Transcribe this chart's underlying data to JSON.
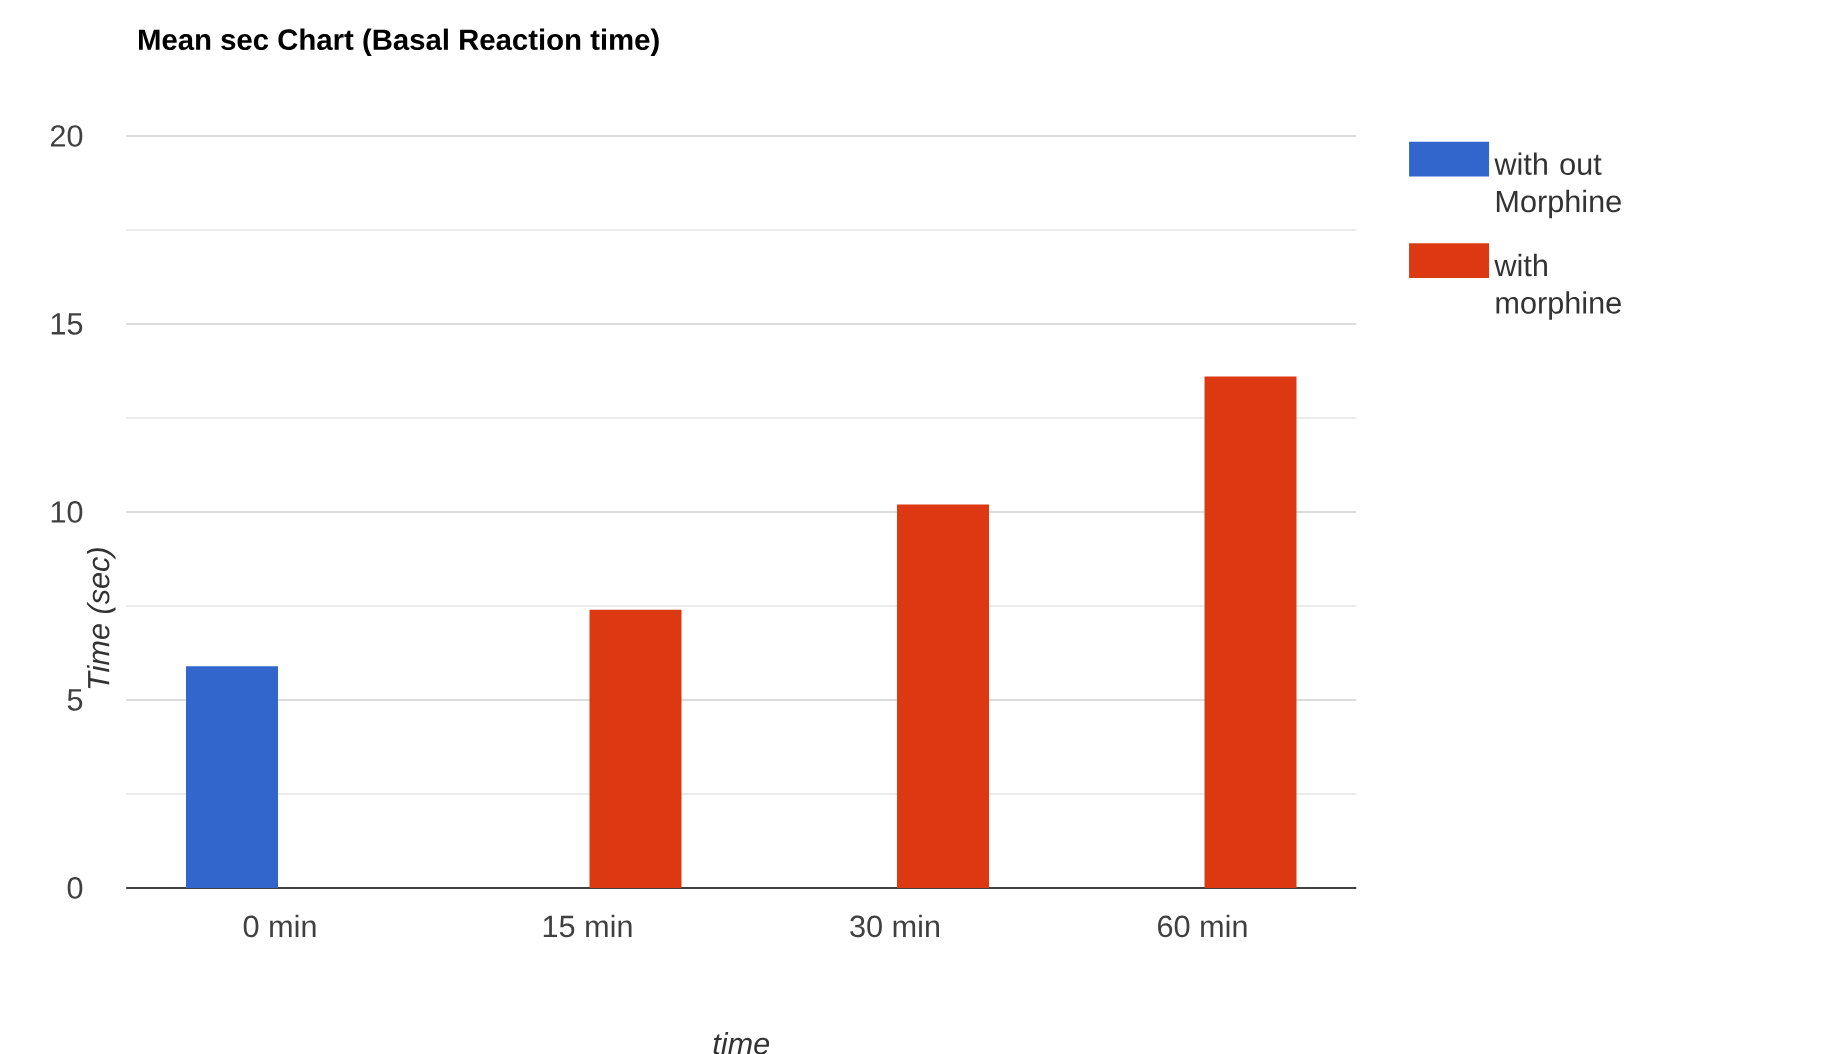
{
  "chart_data": {
    "type": "bar",
    "title": "Mean sec Chart (Basal Reaction time)",
    "xlabel": "time",
    "ylabel": "Time (sec)",
    "categories": [
      "0 min",
      "15 min",
      "30 min",
      "60 min"
    ],
    "series": [
      {
        "name": "with out Morphine",
        "color": "#3366cc",
        "values": [
          5.9,
          null,
          null,
          null
        ]
      },
      {
        "name": "with morphine",
        "color": "#dc3912",
        "values": [
          null,
          7.4,
          10.2,
          13.6
        ]
      }
    ],
    "ylim": [
      0,
      20
    ],
    "yticks": [
      0,
      {
        "value": 2.5,
        "label": null
      },
      5,
      {
        "value": 7.5,
        "label": null
      },
      10,
      {
        "value": 12.5,
        "label": null
      },
      15,
      {
        "value": 17.5,
        "label": null
      },
      20
    ],
    "grid": "y",
    "legend": "right"
  }
}
